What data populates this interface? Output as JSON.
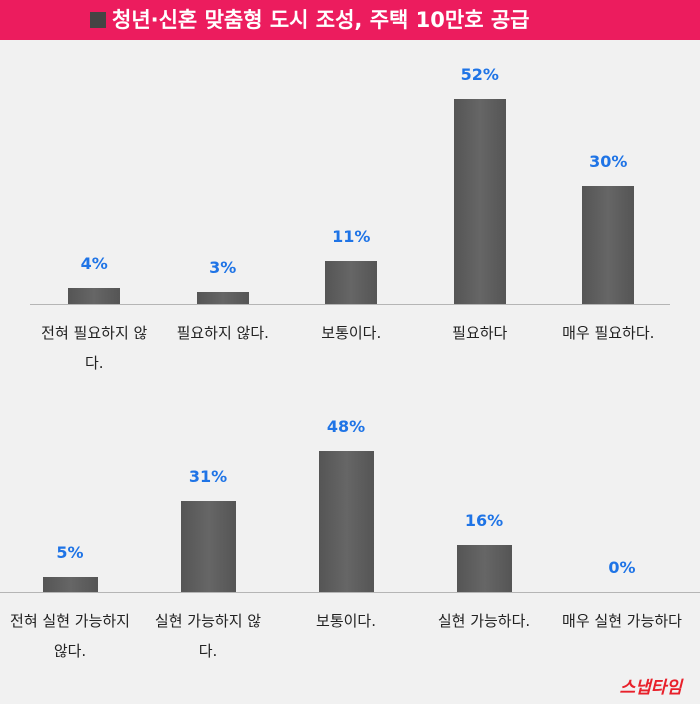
{
  "header": {
    "title": "청년·신혼 맞춤형 도시 조성, 주택 10만호 공급"
  },
  "chart_data": [
    {
      "type": "bar",
      "categories": [
        "전혀 필요하지 않다.",
        "필요하지 않다.",
        "보통이다.",
        "필요하다",
        "매우 필요하다."
      ],
      "values": [
        4,
        3,
        11,
        52,
        30
      ],
      "value_labels": [
        "4%",
        "3%",
        "11%",
        "52%",
        "30%"
      ],
      "color": "#555555"
    },
    {
      "type": "bar",
      "categories": [
        "전혀 실현 가능하지 않다.",
        "실현 가능하지 않다.",
        "보통이다.",
        "실현 가능하다.",
        "매우 실현 가능하다"
      ],
      "values": [
        5,
        31,
        48,
        16,
        0
      ],
      "value_labels": [
        "5%",
        "31%",
        "48%",
        "16%",
        "0%"
      ],
      "color": "#555555"
    }
  ],
  "footer": {
    "logo": "스냅타임"
  }
}
